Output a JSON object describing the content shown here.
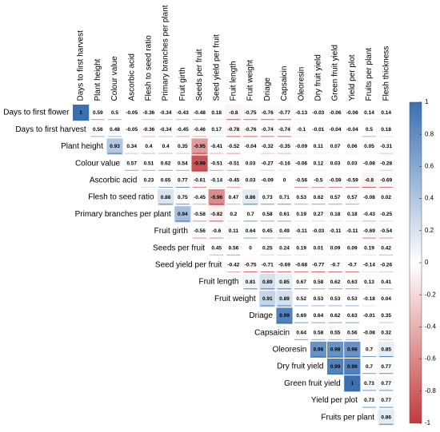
{
  "chart_data": {
    "type": "corrplot",
    "columns": [
      "Days to first harvest",
      "Plant height",
      "Colour value",
      "Ascorbic acid",
      "Flesh to seed ratio",
      "Primary branches per plant",
      "Fruit girth",
      "Seeds per fruit",
      "Seed yield per fruit",
      "Fruit length",
      "Fruit weight",
      "Driage",
      "Capsaicin",
      "Oleoresin",
      "Dry fruit yield",
      "Green fruit yield",
      "Yield per plot",
      "Fruits per plant",
      "Flesh thickness"
    ],
    "rows": [
      "Days to first flower",
      "Days to first harvest",
      "Plant height",
      "Colour value",
      "Ascorbic acid",
      "Flesh to seed ratio",
      "Primary branches per plant",
      "Fruit girth",
      "Seeds per fruit",
      "Seed yield per fruit",
      "Fruit length",
      "Fruit weight",
      "Driage",
      "Capsaicin",
      "Oleoresin",
      "Dry fruit yield",
      "Green fruit yield",
      "Yield per plot",
      "Fruits per plant"
    ],
    "values": [
      [
        1,
        0.59,
        0.5,
        -0.05,
        -0.36,
        -0.34,
        -0.43,
        -0.48,
        0.18,
        -0.8,
        -0.75,
        -0.76,
        -0.77,
        -0.13,
        -0.03,
        -0.06,
        -0.06,
        0.14,
        0.14
      ],
      [
        0.56,
        0.48,
        -0.05,
        -0.36,
        -0.34,
        -0.45,
        -0.46,
        0.17,
        -0.78,
        -0.76,
        -0.74,
        -0.74,
        -0.1,
        -0.01,
        -0.04,
        -0.04,
        0.5,
        0.18
      ],
      [
        0.93,
        0.34,
        0.4,
        0.4,
        0.35,
        -0.95,
        -0.41,
        -0.52,
        -0.04,
        -0.32,
        -0.35,
        -0.09,
        0.11,
        0.07,
        0.06,
        0.05,
        -0.31
      ],
      [
        0.57,
        0.51,
        0.62,
        0.54,
        -0.99,
        -0.51,
        -0.51,
        0.03,
        -0.27,
        -0.16,
        -0.06,
        0.12,
        0.03,
        0.03,
        -0.08,
        -0.28
      ],
      [
        0.23,
        0.65,
        0.77,
        -0.61,
        -0.14,
        -0.45,
        0.03,
        -0.09,
        0,
        -0.56,
        -0.5,
        -0.59,
        -0.59,
        -0.8,
        -0.69
      ],
      [
        0.88,
        0.75,
        -0.45,
        -0.96,
        0.47,
        0.86,
        0.73,
        0.71,
        0.53,
        0.62,
        0.57,
        0.57,
        -0.08,
        0.02
      ],
      [
        0.94,
        -0.58,
        -0.82,
        0.2,
        0.7,
        0.58,
        0.61,
        0.19,
        0.27,
        0.18,
        0.18,
        -0.43,
        -0.25
      ],
      [
        -0.56,
        -0.6,
        0.11,
        0.64,
        0.45,
        0.49,
        -0.11,
        -0.03,
        -0.11,
        -0.11,
        -0.69,
        -0.54
      ],
      [
        0.45,
        0.56,
        0,
        0.25,
        0.24,
        0.19,
        0.01,
        0.09,
        0.09,
        0.19,
        0.42
      ],
      [
        -0.42,
        -0.75,
        -0.71,
        -0.69,
        -0.68,
        -0.77,
        -0.7,
        -0.7,
        -0.14,
        -0.26
      ],
      [
        0.81,
        0.89,
        0.85,
        0.67,
        0.58,
        0.62,
        0.63,
        0.13,
        0.41
      ],
      [
        0.91,
        0.89,
        0.52,
        0.53,
        0.53,
        0.53,
        -0.18,
        0.04
      ],
      [
        0.99,
        0.69,
        0.64,
        0.62,
        0.63,
        -0.01,
        0.35
      ],
      [
        0.64,
        0.58,
        0.55,
        0.56,
        -0.08,
        0.32
      ],
      [
        0.98,
        0.98,
        0.98,
        0.7,
        0.85
      ],
      [
        0.99,
        0.99,
        0.7,
        0.77
      ],
      [
        1,
        0.73,
        0.77
      ],
      [
        0.73,
        0.77
      ],
      [
        0.86
      ]
    ],
    "color_scale": [
      "#c23b3d",
      "#ffffff",
      "#3a70b2"
    ],
    "colorbar_lim": [
      -1,
      1
    ],
    "colorbar_ticks": [
      1,
      0.8,
      0.6,
      0.4,
      0.2,
      0,
      -0.2,
      -0.4,
      -0.6,
      -0.8,
      -1
    ]
  }
}
